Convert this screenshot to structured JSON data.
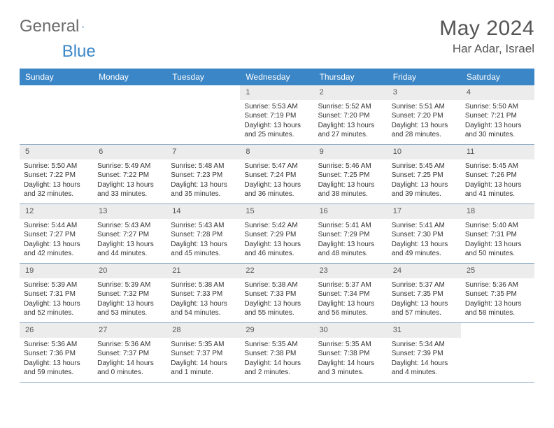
{
  "logo": {
    "text1": "General",
    "text2": "Blue"
  },
  "title": "May 2024",
  "location": "Har Adar, Israel",
  "colors": {
    "header_bg": "#3b86c6",
    "daynum_bg": "#ececec",
    "row_border": "#8aa9c4",
    "text": "#333333",
    "title_text": "#555555"
  },
  "weekdays": [
    "Sunday",
    "Monday",
    "Tuesday",
    "Wednesday",
    "Thursday",
    "Friday",
    "Saturday"
  ],
  "weeks": [
    [
      {
        "n": "",
        "empty": true
      },
      {
        "n": "",
        "empty": true
      },
      {
        "n": "",
        "empty": true
      },
      {
        "n": "1",
        "sunrise": "5:53 AM",
        "sunset": "7:19 PM",
        "daylight": "13 hours and 25 minutes."
      },
      {
        "n": "2",
        "sunrise": "5:52 AM",
        "sunset": "7:20 PM",
        "daylight": "13 hours and 27 minutes."
      },
      {
        "n": "3",
        "sunrise": "5:51 AM",
        "sunset": "7:20 PM",
        "daylight": "13 hours and 28 minutes."
      },
      {
        "n": "4",
        "sunrise": "5:50 AM",
        "sunset": "7:21 PM",
        "daylight": "13 hours and 30 minutes."
      }
    ],
    [
      {
        "n": "5",
        "sunrise": "5:50 AM",
        "sunset": "7:22 PM",
        "daylight": "13 hours and 32 minutes."
      },
      {
        "n": "6",
        "sunrise": "5:49 AM",
        "sunset": "7:22 PM",
        "daylight": "13 hours and 33 minutes."
      },
      {
        "n": "7",
        "sunrise": "5:48 AM",
        "sunset": "7:23 PM",
        "daylight": "13 hours and 35 minutes."
      },
      {
        "n": "8",
        "sunrise": "5:47 AM",
        "sunset": "7:24 PM",
        "daylight": "13 hours and 36 minutes."
      },
      {
        "n": "9",
        "sunrise": "5:46 AM",
        "sunset": "7:25 PM",
        "daylight": "13 hours and 38 minutes."
      },
      {
        "n": "10",
        "sunrise": "5:45 AM",
        "sunset": "7:25 PM",
        "daylight": "13 hours and 39 minutes."
      },
      {
        "n": "11",
        "sunrise": "5:45 AM",
        "sunset": "7:26 PM",
        "daylight": "13 hours and 41 minutes."
      }
    ],
    [
      {
        "n": "12",
        "sunrise": "5:44 AM",
        "sunset": "7:27 PM",
        "daylight": "13 hours and 42 minutes."
      },
      {
        "n": "13",
        "sunrise": "5:43 AM",
        "sunset": "7:27 PM",
        "daylight": "13 hours and 44 minutes."
      },
      {
        "n": "14",
        "sunrise": "5:43 AM",
        "sunset": "7:28 PM",
        "daylight": "13 hours and 45 minutes."
      },
      {
        "n": "15",
        "sunrise": "5:42 AM",
        "sunset": "7:29 PM",
        "daylight": "13 hours and 46 minutes."
      },
      {
        "n": "16",
        "sunrise": "5:41 AM",
        "sunset": "7:29 PM",
        "daylight": "13 hours and 48 minutes."
      },
      {
        "n": "17",
        "sunrise": "5:41 AM",
        "sunset": "7:30 PM",
        "daylight": "13 hours and 49 minutes."
      },
      {
        "n": "18",
        "sunrise": "5:40 AM",
        "sunset": "7:31 PM",
        "daylight": "13 hours and 50 minutes."
      }
    ],
    [
      {
        "n": "19",
        "sunrise": "5:39 AM",
        "sunset": "7:31 PM",
        "daylight": "13 hours and 52 minutes."
      },
      {
        "n": "20",
        "sunrise": "5:39 AM",
        "sunset": "7:32 PM",
        "daylight": "13 hours and 53 minutes."
      },
      {
        "n": "21",
        "sunrise": "5:38 AM",
        "sunset": "7:33 PM",
        "daylight": "13 hours and 54 minutes."
      },
      {
        "n": "22",
        "sunrise": "5:38 AM",
        "sunset": "7:33 PM",
        "daylight": "13 hours and 55 minutes."
      },
      {
        "n": "23",
        "sunrise": "5:37 AM",
        "sunset": "7:34 PM",
        "daylight": "13 hours and 56 minutes."
      },
      {
        "n": "24",
        "sunrise": "5:37 AM",
        "sunset": "7:35 PM",
        "daylight": "13 hours and 57 minutes."
      },
      {
        "n": "25",
        "sunrise": "5:36 AM",
        "sunset": "7:35 PM",
        "daylight": "13 hours and 58 minutes."
      }
    ],
    [
      {
        "n": "26",
        "sunrise": "5:36 AM",
        "sunset": "7:36 PM",
        "daylight": "13 hours and 59 minutes."
      },
      {
        "n": "27",
        "sunrise": "5:36 AM",
        "sunset": "7:37 PM",
        "daylight": "14 hours and 0 minutes."
      },
      {
        "n": "28",
        "sunrise": "5:35 AM",
        "sunset": "7:37 PM",
        "daylight": "14 hours and 1 minute."
      },
      {
        "n": "29",
        "sunrise": "5:35 AM",
        "sunset": "7:38 PM",
        "daylight": "14 hours and 2 minutes."
      },
      {
        "n": "30",
        "sunrise": "5:35 AM",
        "sunset": "7:38 PM",
        "daylight": "14 hours and 3 minutes."
      },
      {
        "n": "31",
        "sunrise": "5:34 AM",
        "sunset": "7:39 PM",
        "daylight": "14 hours and 4 minutes."
      },
      {
        "n": "",
        "empty": true
      }
    ]
  ]
}
